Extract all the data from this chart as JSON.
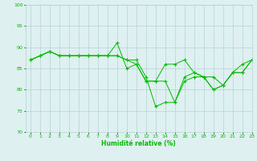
{
  "xlabel": "Humidité relative (%)",
  "xlim": [
    -0.5,
    23
  ],
  "ylim": [
    70,
    100
  ],
  "yticks": [
    70,
    75,
    80,
    85,
    90,
    95,
    100
  ],
  "xticks": [
    0,
    1,
    2,
    3,
    4,
    5,
    6,
    7,
    8,
    9,
    10,
    11,
    12,
    13,
    14,
    15,
    16,
    17,
    18,
    19,
    20,
    21,
    22,
    23
  ],
  "bg_color": "#dff0f0",
  "grid_color": "#b0d4d4",
  "line_color": "#00bb00",
  "series": [
    [
      87,
      88,
      89,
      88,
      88,
      88,
      88,
      88,
      88,
      91,
      85,
      86,
      82,
      82,
      86,
      86,
      87,
      84,
      83,
      80,
      81,
      84,
      86,
      87
    ],
    [
      87,
      88,
      89,
      88,
      88,
      88,
      88,
      88,
      88,
      88,
      87,
      87,
      83,
      76,
      77,
      77,
      82,
      83,
      83,
      80,
      81,
      84,
      84,
      87
    ],
    [
      87,
      88,
      89,
      88,
      88,
      88,
      88,
      88,
      88,
      88,
      87,
      86,
      82,
      82,
      82,
      77,
      83,
      84,
      83,
      83,
      81,
      84,
      84,
      87
    ]
  ]
}
